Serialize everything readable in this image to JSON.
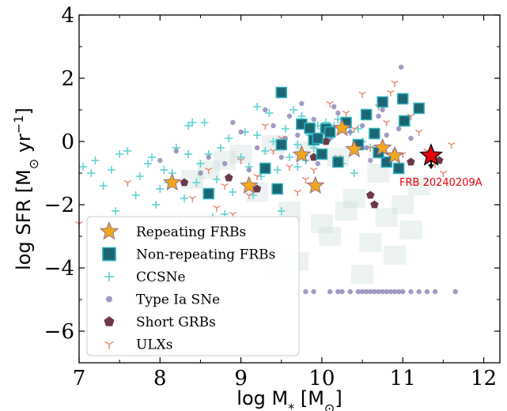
{
  "chart_data": {
    "type": "scatter",
    "title": "",
    "xlabel": "log M",
    "xlabel_sub": "*",
    "xlabel_unit_pre": " [M",
    "xlabel_unit_sym": "⊙",
    "xlabel_unit_post": "]",
    "ylabel": "log SFR [M",
    "ylabel_sym": "⊙",
    "ylabel_mid": " yr",
    "ylabel_sup": "−1",
    "ylabel_post": "]",
    "xlim": [
      7,
      12.2
    ],
    "ylim": [
      -7,
      4
    ],
    "xticks": [
      7,
      8,
      9,
      10,
      11,
      12
    ],
    "xtick_labels": [
      "7",
      "8",
      "9",
      "10",
      "11",
      "12"
    ],
    "yticks": [
      4,
      2,
      0,
      -2,
      -4,
      -6
    ],
    "ytick_labels": [
      "4",
      "2",
      "0",
      "−2",
      "−4",
      "−6"
    ],
    "legend_position": "lower-left",
    "grid": false,
    "colors": {
      "repeating": "#f2a81d",
      "repeating_edge": "#8d6d8c",
      "nonrepeating": "#1c6673",
      "nonrepeating_edge": "#2fb3c0",
      "ccsne": "#5fd3d3",
      "ia": "#8f89b8",
      "sgrb": "#6b3848",
      "ulx": "#e88b72",
      "highlight": "#e8000b",
      "background_density": "#c7d9d6"
    },
    "series": [
      {
        "name": "Repeating FRBs",
        "marker": "star",
        "x": [
          8.15,
          9.1,
          9.75,
          9.92,
          10.25,
          10.4,
          10.75,
          10.9
        ],
        "y": [
          -1.3,
          -1.4,
          -0.42,
          -1.4,
          0.42,
          -0.25,
          -0.2,
          -0.45
        ]
      },
      {
        "name": "Non-repeating FRBs",
        "marker": "square",
        "x": [
          8.6,
          9.3,
          9.5,
          9.5,
          9.45,
          9.75,
          9.85,
          9.9,
          10.0,
          10.05,
          10.1,
          10.2,
          10.3,
          10.45,
          10.55,
          10.65,
          10.75,
          10.8,
          10.95,
          11.0,
          11.02,
          11.2,
          9.95,
          10.7
        ],
        "y": [
          -1.65,
          -0.85,
          1.55,
          -0.1,
          -1.5,
          0.55,
          0.42,
          0.05,
          -0.4,
          0.4,
          0.3,
          -0.65,
          0.6,
          -0.1,
          0.85,
          0.25,
          1.25,
          -0.65,
          -0.85,
          1.35,
          0.65,
          1.05,
          0.1,
          -0.35
        ]
      },
      {
        "name": "CCSNe",
        "marker": "plus",
        "x": [
          7.05,
          7.2,
          7.4,
          7.6,
          7.75,
          7.9,
          8.05,
          8.2,
          8.35,
          8.5,
          8.6,
          8.7,
          8.85,
          9.0,
          9.1,
          9.2,
          9.3,
          9.45,
          9.55,
          9.7,
          9.8,
          9.95,
          10.1,
          10.2,
          10.35,
          10.5,
          7.3,
          7.5,
          7.7,
          7.85,
          8.0,
          8.15,
          8.3,
          8.45,
          8.55,
          8.75,
          8.9,
          9.05,
          9.25,
          9.4,
          9.6,
          9.75,
          9.9,
          10.05,
          10.25,
          10.45,
          7.15,
          7.95,
          8.4,
          8.8,
          9.15,
          9.35,
          9.65,
          9.85,
          10.15,
          10.4,
          8.25,
          8.65,
          8.95,
          9.5,
          7.45,
          8.1,
          9.2,
          10.6,
          8.35,
          9.7
        ],
        "y": [
          -0.8,
          -0.6,
          -0.9,
          -0.3,
          -1.1,
          -0.5,
          -0.9,
          -0.2,
          0.5,
          -0.7,
          -0.4,
          -1.2,
          0.1,
          -0.5,
          -0.8,
          0.2,
          -0.3,
          -0.9,
          0.4,
          -0.1,
          -0.6,
          0.5,
          0.1,
          0.7,
          0.3,
          0.0,
          -1.4,
          -0.4,
          -1.7,
          -0.7,
          -1.5,
          -1.0,
          -1.8,
          -1.3,
          0.6,
          -0.2,
          -1.6,
          0.3,
          -1.1,
          0.0,
          -0.5,
          0.8,
          -0.2,
          0.6,
          -0.7,
          0.4,
          -1.0,
          -2.0,
          0.6,
          -2.3,
          -1.7,
          0.9,
          1.0,
          0.2,
          0.5,
          -1.0,
          -2.6,
          -2.4,
          -2.8,
          -2.2,
          -2.2,
          -1.3,
          1.1,
          -0.2,
          -0.4,
          -0.8
        ]
      },
      {
        "name": "Type Ia SNe",
        "marker": "circle",
        "x": [
          8.0,
          8.2,
          8.5,
          8.8,
          9.0,
          9.2,
          9.4,
          9.5,
          9.6,
          9.7,
          9.8,
          9.9,
          10.0,
          10.1,
          10.2,
          10.3,
          10.4,
          10.5,
          10.6,
          10.7,
          10.8,
          10.9,
          11.0,
          11.1,
          8.3,
          8.6,
          8.9,
          9.1,
          9.3,
          9.55,
          9.75,
          9.95,
          10.15,
          10.35,
          10.55,
          10.75,
          10.95,
          9.8,
          9.9,
          10.1,
          10.2,
          10.25,
          10.35,
          10.45,
          10.5,
          10.55,
          10.6,
          10.65,
          10.7,
          10.75,
          10.8,
          10.85,
          10.9,
          10.95,
          11.0,
          11.1,
          11.2,
          11.3,
          11.4,
          11.65,
          10.98
        ],
        "y": [
          -0.6,
          -0.3,
          -1.0,
          -0.7,
          0.3,
          -0.2,
          0.5,
          -0.5,
          0.8,
          0.2,
          -0.4,
          0.7,
          0.4,
          0.1,
          0.9,
          0.6,
          -0.1,
          0.5,
          -0.6,
          0.8,
          0.2,
          -0.3,
          0.7,
          0.1,
          -1.3,
          -0.5,
          0.6,
          -0.9,
          1.0,
          0.1,
          1.2,
          -0.7,
          1.1,
          0.3,
          -0.2,
          1.0,
          0.4,
          -4.75,
          -4.75,
          -4.75,
          -4.75,
          -4.75,
          -4.75,
          -4.75,
          -4.75,
          -4.75,
          -4.75,
          -4.75,
          -4.75,
          -4.75,
          -4.75,
          -4.75,
          -4.75,
          -4.75,
          -4.75,
          -4.75,
          -4.75,
          -4.75,
          -4.75,
          -4.75,
          2.35
        ]
      },
      {
        "name": "Short GRBs",
        "marker": "pentagon",
        "x": [
          8.85,
          9.2,
          9.9,
          10.05,
          10.6,
          10.65,
          11.1,
          11.45,
          8.3
        ],
        "y": [
          -1.15,
          -1.5,
          -0.5,
          0.0,
          -1.7,
          -2.0,
          -0.65,
          -0.6,
          -1.3
        ]
      },
      {
        "name": "ULXs",
        "marker": "tri",
        "x": [
          7.0,
          7.6,
          8.4,
          8.6,
          8.8,
          9.0,
          9.2,
          9.4,
          9.6,
          9.8,
          10.0,
          10.2,
          10.4,
          10.6,
          10.8,
          11.0,
          11.2,
          11.4,
          11.6,
          9.1,
          9.5,
          9.9,
          10.3,
          10.7,
          11.1,
          8.9,
          9.3,
          9.7,
          10.1,
          10.5,
          10.9,
          11.3,
          10.85,
          11.5,
          8.7
        ],
        "y": [
          -2.6,
          -1.3,
          -1.8,
          -0.9,
          -1.4,
          -0.6,
          -1.1,
          -0.3,
          -0.8,
          -1.2,
          0.2,
          -0.5,
          0.4,
          -0.2,
          0.6,
          -0.4,
          0.3,
          -0.7,
          -0.1,
          -1.7,
          0.1,
          -0.9,
          0.9,
          1.1,
          0.8,
          -2.3,
          0.5,
          -1.6,
          1.2,
          1.5,
          1.85,
          -0.3,
          1.55,
          -1.0,
          -2.1
        ]
      }
    ],
    "highlight": {
      "label": "FRB 20240209A",
      "x": 11.35,
      "y": -0.45,
      "arrow_to_y": -0.75
    },
    "background_density": {
      "note": "",
      "x": [
        8.4,
        8.6,
        8.8,
        9.0,
        9.2,
        9.4,
        9.6,
        9.8,
        10.0,
        10.2,
        10.4,
        10.6,
        10.8,
        11.0,
        11.2,
        9.3,
        9.7,
        10.1,
        10.5,
        10.9,
        8.9,
        9.5,
        10.3,
        10.7,
        11.1
      ],
      "y": [
        -1.2,
        -0.9,
        -0.6,
        -0.4,
        -1.6,
        -0.1,
        -2.2,
        -0.3,
        -2.6,
        -0.5,
        -1.8,
        -3.2,
        -2.4,
        -2.0,
        -1.4,
        -3.4,
        -3.8,
        -3.0,
        -4.2,
        -3.6,
        -2.8,
        -4.0,
        -2.2,
        -1.0,
        -2.8
      ]
    }
  }
}
